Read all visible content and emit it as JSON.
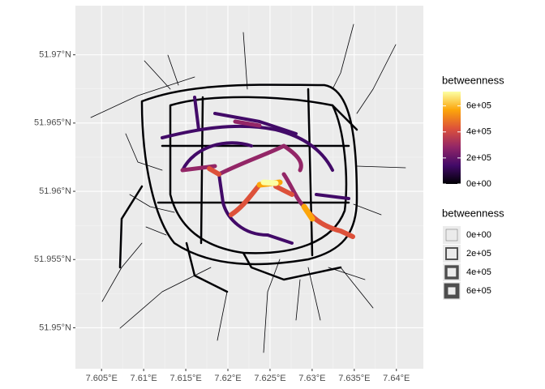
{
  "chart_data": {
    "type": "map",
    "xlim": [
      7.6019,
      7.6432
    ],
    "ylim": [
      51.947,
      51.9736
    ],
    "xticks": [
      {
        "value": 7.605,
        "label": "7.605°E"
      },
      {
        "value": 7.61,
        "label": "7.61°E"
      },
      {
        "value": 7.615,
        "label": "7.615°E"
      },
      {
        "value": 7.62,
        "label": "7.62°E"
      },
      {
        "value": 7.625,
        "label": "7.625°E"
      },
      {
        "value": 7.63,
        "label": "7.63°E"
      },
      {
        "value": 7.635,
        "label": "7.635°E"
      },
      {
        "value": 7.64,
        "label": "7.64°E"
      }
    ],
    "yticks": [
      {
        "value": 51.95,
        "label": "51.95°N"
      },
      {
        "value": 51.955,
        "label": "51.955°N"
      },
      {
        "value": 51.96,
        "label": "51.96°N"
      },
      {
        "value": 51.965,
        "label": "51.965°N"
      },
      {
        "value": 51.97,
        "label": "51.97°N"
      }
    ],
    "grid": true,
    "color_legend": {
      "title": "betweenness",
      "limits": [
        0,
        710000
      ],
      "colors": [
        "#000004",
        "#420a68",
        "#932667",
        "#dd513a",
        "#fca50a",
        "#fcffa4"
      ],
      "ticks": [
        {
          "value": 0,
          "label": "0e+00"
        },
        {
          "value": 200000,
          "label": "2e+05"
        },
        {
          "value": 400000,
          "label": "4e+05"
        },
        {
          "value": 600000,
          "label": "6e+05"
        }
      ]
    },
    "size_legend": {
      "title": "betweenness",
      "breaks": [
        {
          "value": 0,
          "label": "0e+00"
        },
        {
          "value": 200000,
          "label": "2e+05"
        },
        {
          "value": 400000,
          "label": "4e+05"
        },
        {
          "value": 600000,
          "label": "6e+05"
        }
      ]
    }
  }
}
